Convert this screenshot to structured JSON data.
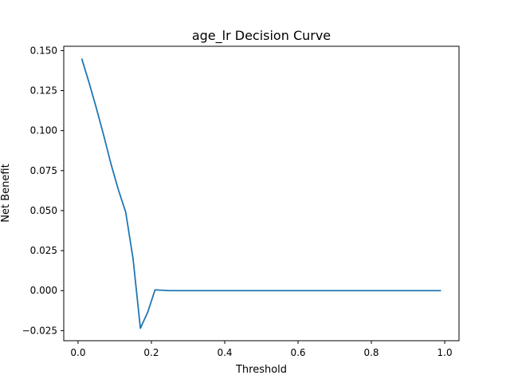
{
  "chart_data": {
    "type": "line",
    "title": "age_lr Decision Curve",
    "xlabel": "Threshold",
    "ylabel": "Net Benefit",
    "xlim": [
      -0.039,
      1.039
    ],
    "ylim": [
      -0.0313,
      0.1527
    ],
    "xticks": [
      0.0,
      0.2,
      0.4,
      0.6,
      0.8,
      1.0
    ],
    "xtick_labels": [
      "0.0",
      "0.2",
      "0.4",
      "0.6",
      "0.8",
      "1.0"
    ],
    "yticks": [
      -0.025,
      0.0,
      0.025,
      0.05,
      0.075,
      0.1,
      0.125,
      0.15
    ],
    "ytick_labels": [
      "−0.025",
      "0.000",
      "0.025",
      "0.050",
      "0.075",
      "0.100",
      "0.125",
      "0.150"
    ],
    "grid": false,
    "series": [
      {
        "color": "#1f77b4",
        "x": [
          0.01,
          0.03,
          0.05,
          0.07,
          0.09,
          0.11,
          0.13,
          0.15,
          0.17,
          0.19,
          0.21,
          0.25,
          0.3,
          0.4,
          0.5,
          0.6,
          0.7,
          0.8,
          0.9,
          0.99
        ],
        "y": [
          0.145,
          0.13,
          0.114,
          0.097,
          0.079,
          0.063,
          0.049,
          0.02,
          -0.0235,
          -0.0135,
          0.0005,
          0.0,
          0.0,
          0.0,
          0.0,
          0.0,
          0.0,
          0.0,
          0.0,
          0.0
        ]
      }
    ]
  }
}
